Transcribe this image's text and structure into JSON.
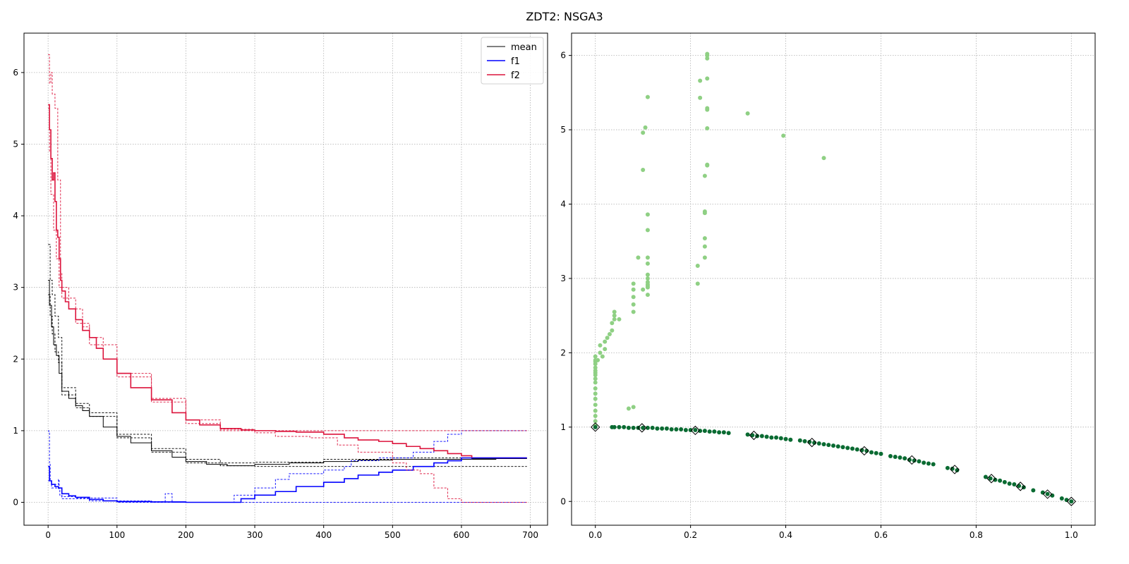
{
  "figure": {
    "title": "ZDT2: NSGA3"
  },
  "chart_data": [
    {
      "type": "line",
      "title": "",
      "xlabel": "",
      "ylabel": "",
      "xlim": [
        -35,
        725
      ],
      "ylim": [
        -0.32,
        6.55
      ],
      "xticks": [
        0,
        100,
        200,
        300,
        400,
        500,
        600,
        700
      ],
      "yticks": [
        0,
        1,
        2,
        3,
        4,
        5,
        6
      ],
      "grid": true,
      "legend": {
        "placement": "top-right",
        "entries": [
          "mean",
          "f1",
          "f2"
        ]
      },
      "series": [
        {
          "name": "mean",
          "color": "#000000",
          "style": "solid",
          "x": [
            0,
            2,
            5,
            8,
            12,
            16,
            20,
            30,
            40,
            50,
            60,
            80,
            100,
            120,
            150,
            180,
            200,
            230,
            260,
            300,
            350,
            400,
            450,
            500,
            550,
            600,
            650,
            695
          ],
          "y": [
            3.1,
            2.75,
            2.45,
            2.2,
            2.05,
            1.8,
            1.55,
            1.45,
            1.35,
            1.28,
            1.2,
            1.05,
            0.92,
            0.83,
            0.72,
            0.63,
            0.57,
            0.53,
            0.51,
            0.53,
            0.55,
            0.57,
            0.59,
            0.6,
            0.6,
            0.6,
            0.61,
            0.61
          ]
        },
        {
          "name": "mean-band-upper",
          "color": "#000000",
          "style": "dashed",
          "x": [
            0,
            3,
            6,
            10,
            15,
            20,
            40,
            60,
            100,
            150,
            200,
            250,
            300,
            400,
            500,
            600,
            695
          ],
          "y": [
            3.6,
            3.1,
            2.9,
            2.6,
            2.3,
            1.6,
            1.38,
            1.25,
            0.95,
            0.75,
            0.6,
            0.55,
            0.56,
            0.6,
            0.62,
            0.62,
            0.62
          ]
        },
        {
          "name": "mean-band-lower",
          "color": "#000000",
          "style": "dashed",
          "x": [
            0,
            3,
            6,
            10,
            15,
            20,
            40,
            60,
            100,
            150,
            200,
            250,
            300,
            400,
            500,
            600,
            695
          ],
          "y": [
            2.9,
            2.6,
            2.35,
            2.1,
            1.95,
            1.5,
            1.32,
            1.2,
            0.9,
            0.7,
            0.55,
            0.51,
            0.5,
            0.5,
            0.5,
            0.5,
            0.5
          ]
        },
        {
          "name": "f1",
          "color": "#0000ff",
          "style": "solid",
          "x": [
            0,
            2,
            5,
            10,
            15,
            20,
            30,
            40,
            60,
            80,
            100,
            150,
            200,
            250,
            260,
            280,
            300,
            330,
            360,
            400,
            430,
            450,
            480,
            500,
            530,
            560,
            580,
            600,
            615
          ],
          "y": [
            0.5,
            0.3,
            0.25,
            0.22,
            0.2,
            0.12,
            0.09,
            0.07,
            0.04,
            0.02,
            0.01,
            0.005,
            0.0,
            0.0,
            0.0,
            0.05,
            0.1,
            0.15,
            0.22,
            0.28,
            0.33,
            0.38,
            0.42,
            0.45,
            0.5,
            0.55,
            0.58,
            0.62,
            0.6
          ]
        },
        {
          "name": "f1-band-upper",
          "color": "#0000ff",
          "style": "dashed",
          "x": [
            0,
            1,
            2,
            3,
            5,
            15,
            16,
            17,
            20,
            40,
            100,
            150,
            170,
            180,
            250,
            270,
            300,
            330,
            350,
            400,
            430,
            440,
            480,
            530,
            560,
            580,
            600,
            695
          ],
          "y": [
            1.0,
            0.98,
            0.55,
            0.3,
            0.25,
            0.32,
            0.18,
            0.1,
            0.08,
            0.06,
            0.02,
            0.01,
            0.12,
            0.0,
            0.0,
            0.1,
            0.2,
            0.32,
            0.4,
            0.45,
            0.5,
            0.58,
            0.62,
            0.7,
            0.85,
            0.95,
            1.0,
            1.0
          ]
        },
        {
          "name": "f1-band-lower",
          "color": "#0000ff",
          "style": "dashed",
          "x": [
            0,
            5,
            20,
            60,
            100,
            200,
            260,
            300,
            400,
            500,
            695
          ],
          "y": [
            0.3,
            0.2,
            0.05,
            0.02,
            0.0,
            0.0,
            0.0,
            0.0,
            0.0,
            0.0,
            0.0
          ]
        },
        {
          "name": "f2",
          "color": "#dc143c",
          "style": "solid",
          "x": [
            0,
            2,
            4,
            6,
            8,
            10,
            12,
            14,
            16,
            18,
            20,
            25,
            30,
            40,
            50,
            60,
            70,
            80,
            100,
            120,
            150,
            180,
            200,
            220,
            250,
            280,
            300,
            330,
            360,
            400,
            430,
            450,
            480,
            500,
            520,
            540,
            560,
            580,
            600,
            615
          ],
          "y": [
            5.55,
            5.2,
            4.8,
            4.5,
            4.6,
            4.2,
            3.8,
            3.7,
            3.4,
            3.1,
            2.95,
            2.8,
            2.7,
            2.55,
            2.4,
            2.3,
            2.15,
            2.0,
            1.8,
            1.6,
            1.43,
            1.25,
            1.15,
            1.08,
            1.03,
            1.01,
            1.0,
            0.99,
            0.98,
            0.95,
            0.9,
            0.87,
            0.85,
            0.82,
            0.78,
            0.75,
            0.72,
            0.68,
            0.65,
            0.62
          ]
        },
        {
          "name": "f2-band-upper",
          "color": "#dc143c",
          "style": "dashed",
          "x": [
            0,
            2,
            4,
            6,
            10,
            14,
            18,
            20,
            30,
            50,
            60,
            80,
            100,
            150,
            200,
            250,
            300,
            400,
            430,
            450,
            550,
            560,
            570,
            600,
            695
          ],
          "y": [
            6.25,
            5.85,
            6.0,
            5.7,
            5.5,
            4.5,
            3.2,
            3.0,
            2.7,
            2.45,
            2.3,
            2.0,
            1.8,
            1.45,
            1.15,
            1.02,
            1.0,
            1.0,
            1.0,
            1.0,
            1.0,
            1.0,
            1.0,
            1.0,
            1.0
          ]
        },
        {
          "name": "f2-band-lower",
          "color": "#dc143c",
          "style": "dashed",
          "x": [
            0,
            2,
            4,
            8,
            12,
            16,
            20,
            40,
            60,
            100,
            150,
            200,
            250,
            300,
            330,
            380,
            420,
            450,
            500,
            520,
            540,
            560,
            580,
            600,
            695
          ],
          "y": [
            5.5,
            4.9,
            4.3,
            3.8,
            3.4,
            3.0,
            2.85,
            2.5,
            2.2,
            1.75,
            1.4,
            1.1,
            1.0,
            0.97,
            0.92,
            0.9,
            0.8,
            0.7,
            0.55,
            0.45,
            0.4,
            0.2,
            0.05,
            0.0,
            0.0
          ]
        },
        {
          "name": "mean-final",
          "color": "#000000",
          "style": "solid",
          "x": [
            615,
            695
          ],
          "y": [
            0.61,
            0.61
          ]
        },
        {
          "name": "f2-final",
          "color": "#dc143c",
          "style": "solid",
          "x": [
            615,
            695
          ],
          "y": [
            0.62,
            0.62
          ]
        },
        {
          "name": "f1-final",
          "color": "#0000ff",
          "style": "solid",
          "x": [
            615,
            695
          ],
          "y": [
            0.62,
            0.62
          ]
        }
      ]
    },
    {
      "type": "scatter",
      "title": "",
      "xlabel": "",
      "ylabel": "",
      "xlim": [
        -0.05,
        1.05
      ],
      "ylim": [
        -0.32,
        6.3
      ],
      "xticks": [
        0.0,
        0.2,
        0.4,
        0.6,
        0.8,
        1.0
      ],
      "yticks": [
        0,
        1,
        2,
        3,
        4,
        5,
        6
      ],
      "grid": true,
      "series": [
        {
          "name": "",
          "color": "#8fd084",
          "marker": "circle",
          "x": [
            0.0,
            0.0,
            0.0,
            0.0,
            0.0,
            0.0,
            0.0,
            0.0,
            0.0,
            0.0,
            0.0,
            0.0,
            0.0,
            0.0,
            0.0,
            0.0,
            0.0,
            0.0,
            0.005,
            0.01,
            0.01,
            0.015,
            0.02,
            0.02,
            0.025,
            0.03,
            0.035,
            0.035,
            0.04,
            0.04,
            0.04,
            0.05,
            0.07,
            0.08,
            0.08,
            0.08,
            0.08,
            0.08,
            0.08,
            0.09,
            0.1,
            0.1,
            0.1,
            0.105,
            0.11,
            0.11,
            0.11,
            0.11,
            0.11,
            0.11,
            0.11,
            0.11,
            0.11,
            0.11,
            0.11,
            0.11,
            0.215,
            0.215,
            0.22,
            0.22,
            0.23,
            0.23,
            0.23,
            0.23,
            0.23,
            0.23,
            0.235,
            0.235,
            0.235,
            0.235,
            0.235,
            0.235,
            0.235,
            0.235,
            0.235,
            0.32,
            0.395,
            0.48
          ],
          "y": [
            1.02,
            1.08,
            1.15,
            1.22,
            1.3,
            1.38,
            1.45,
            1.52,
            1.6,
            1.65,
            1.7,
            1.73,
            1.76,
            1.8,
            1.85,
            1.88,
            1.9,
            1.95,
            1.9,
            2.0,
            2.1,
            1.95,
            2.05,
            2.15,
            2.2,
            2.25,
            2.3,
            2.4,
            2.45,
            2.5,
            2.55,
            2.45,
            1.25,
            1.27,
            2.55,
            2.65,
            2.75,
            2.85,
            2.93,
            3.28,
            4.46,
            4.96,
            2.85,
            5.03,
            2.9,
            2.95,
            3.0,
            3.05,
            3.2,
            3.28,
            3.65,
            3.86,
            5.44,
            2.88,
            2.78,
            2.92,
            2.93,
            3.17,
            5.43,
            5.66,
            3.28,
            3.43,
            3.54,
            3.88,
            3.9,
            4.38,
            4.52,
            4.53,
            5.02,
            5.27,
            5.29,
            5.69,
            5.96,
            6.0,
            6.02,
            5.22,
            4.92,
            4.62
          ]
        },
        {
          "name": "",
          "color": "#0a6b32",
          "marker": "circle",
          "x": [
            0.0,
            0.035,
            0.04,
            0.05,
            0.06,
            0.07,
            0.08,
            0.09,
            0.1,
            0.11,
            0.12,
            0.13,
            0.14,
            0.15,
            0.16,
            0.17,
            0.18,
            0.19,
            0.2,
            0.21,
            0.22,
            0.23,
            0.24,
            0.25,
            0.26,
            0.27,
            0.28,
            0.32,
            0.33,
            0.34,
            0.35,
            0.36,
            0.37,
            0.38,
            0.39,
            0.4,
            0.41,
            0.43,
            0.44,
            0.45,
            0.46,
            0.47,
            0.48,
            0.49,
            0.5,
            0.51,
            0.52,
            0.53,
            0.54,
            0.55,
            0.56,
            0.57,
            0.58,
            0.59,
            0.6,
            0.62,
            0.63,
            0.64,
            0.65,
            0.66,
            0.67,
            0.68,
            0.69,
            0.7,
            0.71,
            0.74,
            0.75,
            0.76,
            0.82,
            0.83,
            0.84,
            0.85,
            0.86,
            0.87,
            0.88,
            0.89,
            0.9,
            0.92,
            0.94,
            0.95,
            0.96,
            0.98,
            0.99,
            1.0
          ],
          "y": [
            1.0,
            1.0,
            1.0,
            1.0,
            1.0,
            0.99,
            0.99,
            0.99,
            0.99,
            0.99,
            0.99,
            0.98,
            0.98,
            0.98,
            0.97,
            0.97,
            0.97,
            0.96,
            0.96,
            0.96,
            0.95,
            0.95,
            0.94,
            0.94,
            0.93,
            0.93,
            0.92,
            0.9,
            0.89,
            0.88,
            0.88,
            0.87,
            0.86,
            0.86,
            0.85,
            0.84,
            0.83,
            0.82,
            0.81,
            0.8,
            0.79,
            0.78,
            0.77,
            0.76,
            0.75,
            0.74,
            0.73,
            0.72,
            0.71,
            0.7,
            0.69,
            0.68,
            0.66,
            0.65,
            0.64,
            0.61,
            0.6,
            0.59,
            0.58,
            0.56,
            0.55,
            0.54,
            0.52,
            0.51,
            0.5,
            0.45,
            0.44,
            0.42,
            0.33,
            0.31,
            0.29,
            0.28,
            0.26,
            0.24,
            0.23,
            0.21,
            0.19,
            0.15,
            0.12,
            0.1,
            0.08,
            0.04,
            0.02,
            0.0
          ]
        },
        {
          "name": "",
          "color": "#000000",
          "marker": "diamond-open",
          "x": [
            0.0,
            0.098,
            0.21,
            0.333,
            0.455,
            0.565,
            0.665,
            0.755,
            0.832,
            0.893,
            0.95,
            1.0
          ],
          "y": [
            1.0,
            0.99,
            0.956,
            0.889,
            0.793,
            0.681,
            0.558,
            0.43,
            0.308,
            0.203,
            0.098,
            0.0
          ]
        }
      ]
    }
  ]
}
